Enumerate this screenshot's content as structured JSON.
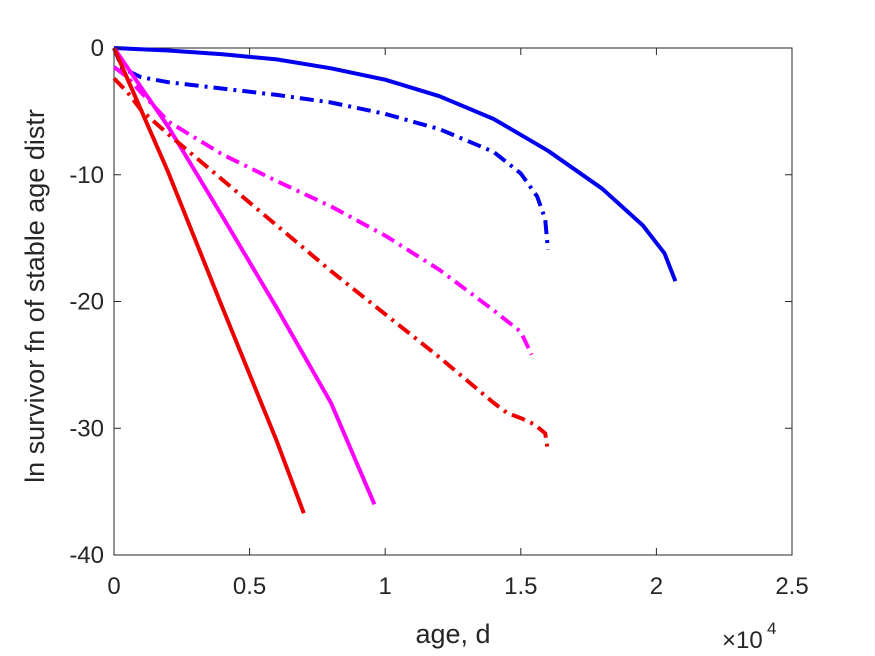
{
  "chart_data": {
    "type": "line",
    "title": "",
    "xlabel": "age, d",
    "ylabel": "ln survivor fn of stable age distr",
    "xlim": [
      0,
      2.5
    ],
    "ylim": [
      -40,
      0
    ],
    "x_multiplier": "×10",
    "x_multiplier_exp": "4",
    "x_ticks": [
      "0",
      "0.5",
      "1",
      "1.5",
      "2",
      "2.5"
    ],
    "y_ticks": [
      "0",
      "-10",
      "-20",
      "-30",
      "-40"
    ],
    "grid": false,
    "legend": "none",
    "series": [
      {
        "color": "#0000ee",
        "style": "solid",
        "x": [
          0,
          0.2,
          0.4,
          0.6,
          0.8,
          1.0,
          1.2,
          1.4,
          1.6,
          1.8,
          1.95,
          2.03,
          2.07
        ],
        "y": [
          0,
          -0.2,
          -0.5,
          -0.9,
          -1.6,
          -2.5,
          -3.8,
          -5.6,
          -8.1,
          -11.1,
          -14.0,
          -16.2,
          -18.4
        ]
      },
      {
        "color": "#0000ee",
        "style": "dashdot",
        "x": [
          0,
          0.03,
          0.1,
          0.2,
          0.4,
          0.6,
          0.8,
          1.0,
          1.2,
          1.4,
          1.5,
          1.56,
          1.59,
          1.6
        ],
        "y": [
          0,
          -1.6,
          -2.3,
          -2.7,
          -3.2,
          -3.7,
          -4.3,
          -5.2,
          -6.4,
          -8.2,
          -9.9,
          -11.7,
          -13.5,
          -15.9
        ]
      },
      {
        "color": "#ff00ff",
        "style": "solid",
        "x": [
          0,
          0.2,
          0.4,
          0.6,
          0.8,
          0.96
        ],
        "y": [
          0,
          -6.2,
          -13.3,
          -20.5,
          -28.0,
          -36.0
        ]
      },
      {
        "color": "#ff00ff",
        "style": "dashdot",
        "x": [
          0,
          0.05,
          0.1,
          0.2,
          0.4,
          0.6,
          0.8,
          1.0,
          1.2,
          1.4,
          1.5,
          1.54
        ],
        "y": [
          -1.5,
          -2.3,
          -3.5,
          -5.8,
          -8.4,
          -10.5,
          -12.5,
          -14.8,
          -17.5,
          -20.7,
          -22.4,
          -24.2
        ]
      },
      {
        "color": "#ee0000",
        "style": "solid",
        "x": [
          0,
          0.2,
          0.4,
          0.6,
          0.7
        ],
        "y": [
          0,
          -9.8,
          -20.5,
          -31.0,
          -36.7
        ]
      },
      {
        "color": "#ee0000",
        "style": "dashdot",
        "x": [
          0,
          0.05,
          0.1,
          0.2,
          0.4,
          0.6,
          0.8,
          1.0,
          1.2,
          1.4,
          1.45,
          1.5,
          1.55,
          1.59,
          1.6
        ],
        "y": [
          -2.4,
          -3.5,
          -4.9,
          -6.8,
          -10.4,
          -14.0,
          -17.6,
          -21.0,
          -24.4,
          -28.0,
          -28.8,
          -29.2,
          -29.7,
          -30.4,
          -31.8
        ]
      }
    ]
  }
}
